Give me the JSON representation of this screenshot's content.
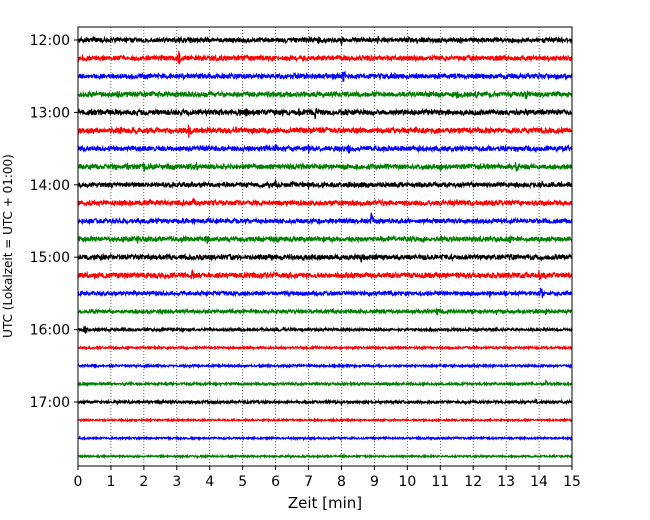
{
  "chart_data": {
    "type": "line",
    "title": "",
    "xlabel": "Zeit  [min]",
    "ylabel": "UTC (Lokalzeit = UTC + 01:00)",
    "xlim": [
      0,
      15
    ],
    "x_ticks": [
      0,
      1,
      2,
      3,
      4,
      5,
      6,
      7,
      8,
      9,
      10,
      11,
      12,
      13,
      14,
      15
    ],
    "x_tick_labels": [
      "0",
      "1",
      "2",
      "3",
      "4",
      "5",
      "6",
      "7",
      "8",
      "9",
      "10",
      "11",
      "12",
      "13",
      "14",
      "15"
    ],
    "y_tick_labels": [
      "12:00",
      "13:00",
      "14:00",
      "15:00",
      "16:00",
      "17:00"
    ],
    "grid": "vertical-dotted",
    "colors": [
      "#000000",
      "#ff0000",
      "#0000ff",
      "#008000"
    ],
    "traces": [
      {
        "time": "12:00",
        "color": "#000000",
        "amp": 2.2,
        "events": [
          [
            7.0,
            6
          ],
          [
            7.3,
            5
          ],
          [
            8.0,
            5
          ],
          [
            9.1,
            6
          ],
          [
            10.3,
            4
          ],
          [
            11.6,
            4
          ],
          [
            6.3,
            3
          ]
        ]
      },
      {
        "time": "12:15",
        "color": "#ff0000",
        "amp": 2.4,
        "events": [
          [
            3.05,
            9
          ],
          [
            9.7,
            4
          ],
          [
            1.2,
            3
          ],
          [
            5.2,
            3
          ]
        ]
      },
      {
        "time": "12:30",
        "color": "#0000ff",
        "amp": 2.4,
        "events": [
          [
            8.05,
            8
          ],
          [
            6.6,
            3
          ],
          [
            2.3,
            3
          ],
          [
            11.2,
            3
          ]
        ]
      },
      {
        "time": "12:45",
        "color": "#008000",
        "amp": 2.4,
        "events": [
          [
            1.2,
            6
          ],
          [
            1.7,
            5
          ],
          [
            11.5,
            5
          ],
          [
            12.1,
            5
          ],
          [
            13.6,
            7
          ],
          [
            3.3,
            4
          ],
          [
            2.3,
            3
          ]
        ]
      },
      {
        "time": "13:00",
        "color": "#000000",
        "amp": 2.6,
        "events": [
          [
            5.1,
            6
          ],
          [
            6.2,
            5
          ],
          [
            6.7,
            5
          ],
          [
            7.2,
            7
          ],
          [
            1.8,
            4
          ],
          [
            4.3,
            4
          ],
          [
            10.0,
            4
          ]
        ]
      },
      {
        "time": "13:15",
        "color": "#ff0000",
        "amp": 2.6,
        "events": [
          [
            3.35,
            9
          ],
          [
            1.3,
            5
          ],
          [
            2.1,
            5
          ],
          [
            11.5,
            4
          ],
          [
            12.5,
            5
          ],
          [
            13.5,
            5
          ],
          [
            9.0,
            3
          ]
        ]
      },
      {
        "time": "13:30",
        "color": "#0000ff",
        "amp": 2.4,
        "events": [
          [
            6.0,
            6
          ],
          [
            7.0,
            6
          ],
          [
            8.2,
            8
          ],
          [
            5.0,
            4
          ],
          [
            10.0,
            3
          ],
          [
            14.6,
            3
          ]
        ]
      },
      {
        "time": "13:45",
        "color": "#008000",
        "amp": 2.4,
        "events": [
          [
            1.5,
            5
          ],
          [
            2.0,
            5
          ],
          [
            3.6,
            6
          ],
          [
            11.0,
            5
          ],
          [
            13.3,
            8
          ],
          [
            4.0,
            3
          ]
        ]
      },
      {
        "time": "14:00",
        "color": "#000000",
        "amp": 2.2,
        "events": [
          [
            6.0,
            5
          ],
          [
            6.5,
            5
          ],
          [
            7.0,
            5
          ],
          [
            8.2,
            6
          ],
          [
            5.2,
            3
          ],
          [
            9.5,
            3
          ]
        ]
      },
      {
        "time": "14:15",
        "color": "#ff0000",
        "amp": 2.4,
        "events": [
          [
            3.5,
            8
          ],
          [
            1.4,
            4
          ],
          [
            2.0,
            4
          ],
          [
            10.9,
            4
          ],
          [
            11.5,
            4
          ],
          [
            12.6,
            4
          ]
        ]
      },
      {
        "time": "14:30",
        "color": "#0000ff",
        "amp": 2.2,
        "events": [
          [
            8.9,
            9
          ],
          [
            6.6,
            4
          ],
          [
            7.4,
            3
          ],
          [
            5.7,
            3
          ]
        ]
      },
      {
        "time": "14:45",
        "color": "#008000",
        "amp": 2.4,
        "events": [
          [
            1.8,
            5
          ],
          [
            2.3,
            5
          ],
          [
            2.8,
            4
          ],
          [
            3.9,
            7
          ],
          [
            13.1,
            7
          ],
          [
            11.0,
            4
          ],
          [
            11.7,
            4
          ],
          [
            10.5,
            3
          ]
        ]
      },
      {
        "time": "15:00",
        "color": "#000000",
        "amp": 2.4,
        "events": [
          [
            8.6,
            6
          ],
          [
            14.5,
            4
          ],
          [
            3.5,
            3
          ],
          [
            6.9,
            3
          ],
          [
            10.8,
            3
          ]
        ]
      },
      {
        "time": "15:15",
        "color": "#ff0000",
        "amp": 2.6,
        "events": [
          [
            3.45,
            8
          ],
          [
            14.0,
            7
          ],
          [
            1.5,
            4
          ],
          [
            2.2,
            4
          ],
          [
            11.5,
            4
          ],
          [
            12.5,
            4
          ]
        ]
      },
      {
        "time": "15:30",
        "color": "#0000ff",
        "amp": 1.9,
        "events": [
          [
            14.05,
            9
          ],
          [
            10.6,
            4
          ],
          [
            11.6,
            4
          ],
          [
            12.5,
            4
          ],
          [
            13.0,
            3
          ]
        ]
      },
      {
        "time": "15:45",
        "color": "#008000",
        "amp": 1.6,
        "events": [
          [
            10.9,
            5
          ],
          [
            12.7,
            4
          ],
          [
            13.5,
            4
          ],
          [
            14.2,
            4
          ],
          [
            2.3,
            2
          ]
        ]
      },
      {
        "time": "16:00",
        "color": "#000000",
        "amp": 1.3,
        "events": [
          [
            0.2,
            7
          ],
          [
            1.0,
            3
          ],
          [
            2.5,
            2
          ],
          [
            7.3,
            2
          ],
          [
            10.7,
            2
          ]
        ]
      },
      {
        "time": "16:15",
        "color": "#ff0000",
        "amp": 1.0,
        "events": [
          [
            2.0,
            2
          ],
          [
            11.0,
            2
          ]
        ]
      },
      {
        "time": "16:30",
        "color": "#0000ff",
        "amp": 1.0,
        "events": [
          [
            0.5,
            4
          ],
          [
            12.0,
            2
          ]
        ]
      },
      {
        "time": "16:45",
        "color": "#008000",
        "amp": 1.1,
        "events": [
          [
            14.2,
            4
          ],
          [
            0.8,
            2
          ],
          [
            3.5,
            2
          ],
          [
            13.5,
            2
          ]
        ]
      },
      {
        "time": "17:00",
        "color": "#000000",
        "amp": 1.3,
        "events": [
          [
            8.0,
            3
          ],
          [
            12.0,
            3
          ],
          [
            13.9,
            3
          ],
          [
            6.0,
            2
          ]
        ]
      },
      {
        "time": "17:15",
        "color": "#ff0000",
        "amp": 0.8,
        "events": []
      },
      {
        "time": "17:30",
        "color": "#0000ff",
        "amp": 0.9,
        "events": [
          [
            2.8,
            2
          ]
        ]
      },
      {
        "time": "17:45",
        "color": "#008000",
        "amp": 0.8,
        "events": []
      }
    ]
  }
}
